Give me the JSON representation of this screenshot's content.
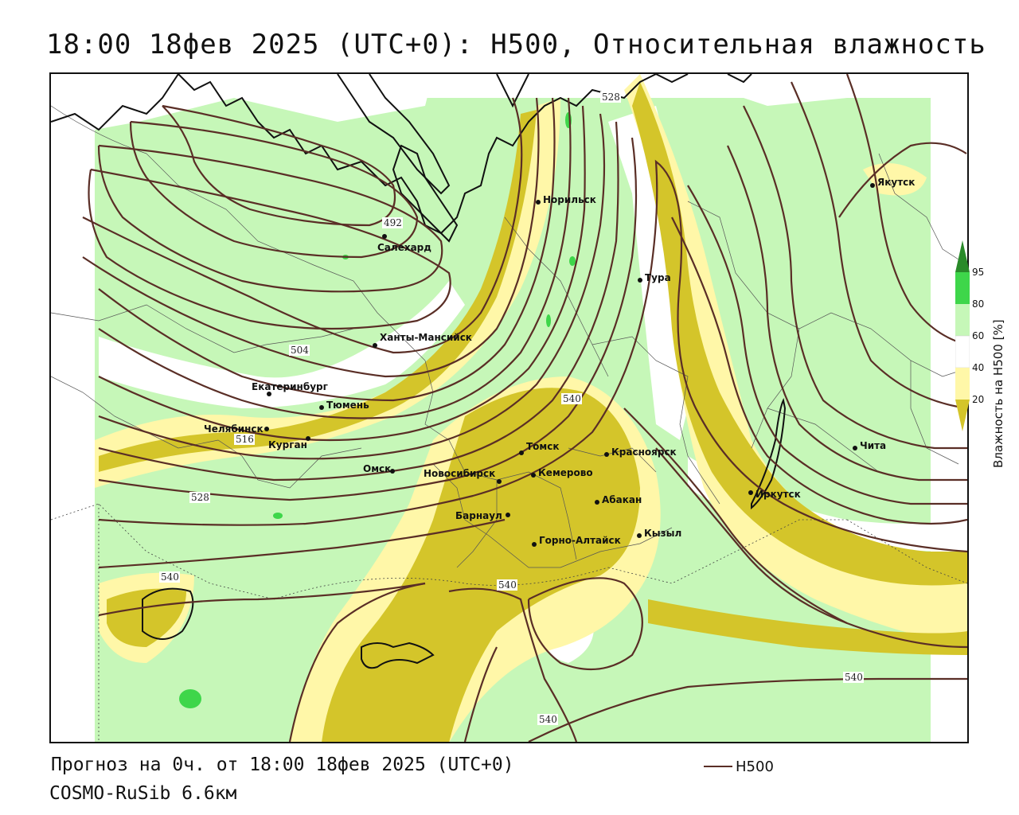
{
  "title": "18:00 18фев 2025 (UTC+0): H500, Относительная влажность",
  "footer": {
    "forecast": "Прогноз на 0ч. от 18:00 18фев 2025 (UTC+0)",
    "model": "COSMO-RuSib 6.6км"
  },
  "legend": {
    "line_label": "H500",
    "line_color": "#5a2e26"
  },
  "colorbar": {
    "title": "Влажность на H500 [%]",
    "ticks": [
      "95",
      "80",
      "60",
      "40",
      "20"
    ],
    "colors": {
      "c20": "#d4c52a",
      "c40": "#fff7a8",
      "c60": "#ffffff",
      "c80": "#c6f7b8",
      "c95": "#3ed64a",
      "c100": "#2a8a2a"
    }
  },
  "cities": [
    "Салехард",
    "Норильск",
    "Якутск",
    "Тура",
    "Ханты-Мансийск",
    "Екатеринбург",
    "Тюмень",
    "Челябинск",
    "Курган",
    "Омск",
    "Новосибирск",
    "Томск",
    "Кемерово",
    "Красноярск",
    "Барнаул",
    "Абакан",
    "Горно-Алтайск",
    "Кызыл",
    "Иркутск",
    "Чита"
  ],
  "contour_labels": [
    "492",
    "504",
    "516",
    "528",
    "528",
    "540",
    "540",
    "540",
    "540",
    "540"
  ]
}
